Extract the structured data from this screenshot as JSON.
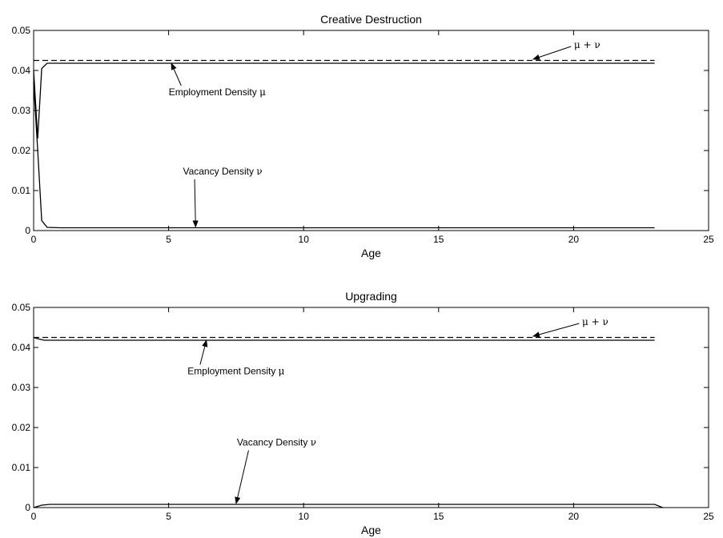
{
  "chart_data": [
    {
      "type": "line",
      "title": "Creative Destruction",
      "xlabel": "Age",
      "ylabel": "",
      "xlim": [
        0,
        25
      ],
      "ylim": [
        0,
        0.05
      ],
      "xticks": [
        "0",
        "5",
        "10",
        "15",
        "20",
        "25"
      ],
      "yticks": [
        "0",
        "0.01",
        "0.02",
        "0.03",
        "0.04",
        "0.05"
      ],
      "grid": false,
      "series": [
        {
          "name": "",
          "style": "dashed",
          "x": [
            0,
            23
          ],
          "y": [
            0.0425,
            0.0425
          ]
        },
        {
          "name": "",
          "style": "solid",
          "x": [
            0,
            0.15,
            0.3,
            0.5,
            1,
            23
          ],
          "y": [
            0.04,
            0.023,
            0.0405,
            0.0418,
            0.0418,
            0.0418
          ]
        },
        {
          "name": "",
          "style": "solid",
          "x": [
            0,
            0.15,
            0.3,
            0.5,
            1,
            23
          ],
          "y": [
            0.037,
            0.02,
            0.0025,
            0.0008,
            0.0007,
            0.0007
          ]
        }
      ],
      "annotations": [
        {
          "name": "",
          "text": "μ + ν",
          "text_x": 20.5,
          "text_y": 0.0456,
          "arrow_to_x": 18.5,
          "arrow_to_y": 0.0428
        },
        {
          "name": "Employment Density",
          "text": "μ",
          "text_x": 6.8,
          "text_y": 0.0338,
          "arrow_to_x": 5.1,
          "arrow_to_y": 0.0418
        },
        {
          "name": "Vacancy Density",
          "text": "ν",
          "text_x": 7.0,
          "text_y": 0.014,
          "arrow_to_x": 6.0,
          "arrow_to_y": 0.0009
        }
      ]
    },
    {
      "type": "line",
      "title": "Upgrading",
      "xlabel": "Age",
      "ylabel": "",
      "xlim": [
        0,
        25
      ],
      "ylim": [
        0,
        0.05
      ],
      "xticks": [
        "0",
        "5",
        "10",
        "15",
        "20",
        "25"
      ],
      "yticks": [
        "0",
        "0.01",
        "0.02",
        "0.03",
        "0.04",
        "0.05"
      ],
      "grid": false,
      "series": [
        {
          "name": "",
          "style": "dashed",
          "x": [
            0,
            23
          ],
          "y": [
            0.0425,
            0.0425
          ]
        },
        {
          "name": "",
          "style": "solid",
          "x": [
            0,
            0.2,
            0.4,
            23
          ],
          "y": [
            0.0425,
            0.0421,
            0.0418,
            0.0418
          ]
        },
        {
          "name": "",
          "style": "solid",
          "x": [
            0,
            0.3,
            0.6,
            23,
            23.3
          ],
          "y": [
            0,
            0.0006,
            0.0008,
            0.0008,
            0
          ]
        }
      ],
      "annotations": [
        {
          "name": "",
          "text": "μ + ν",
          "text_x": 20.8,
          "text_y": 0.0456,
          "arrow_to_x": 18.5,
          "arrow_to_y": 0.0428
        },
        {
          "name": "Employment Density",
          "text": "μ",
          "text_x": 7.5,
          "text_y": 0.0333,
          "arrow_to_x": 6.4,
          "arrow_to_y": 0.0418
        },
        {
          "name": "Vacancy Density",
          "text": "ν",
          "text_x": 9.0,
          "text_y": 0.0155,
          "arrow_to_x": 7.5,
          "arrow_to_y": 0.001
        }
      ]
    }
  ]
}
